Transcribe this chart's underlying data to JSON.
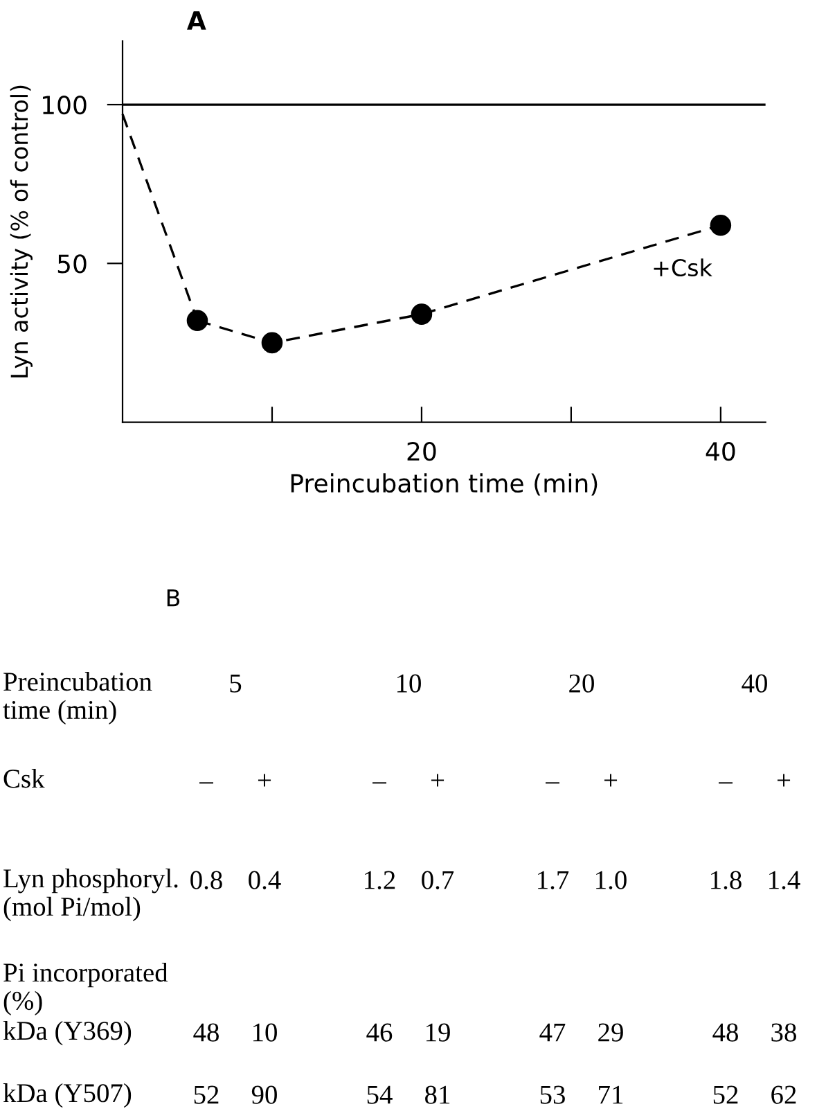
{
  "chart_data": [
    {
      "type": "line",
      "title": "A",
      "xlabel": "Preincubation time (min)",
      "ylabel": "Lyn activity (% of control)",
      "xlim": [
        0,
        43
      ],
      "ylim": [
        0,
        120
      ],
      "xticks": [
        {
          "value": 10,
          "label": null
        },
        20,
        {
          "value": 30,
          "label": null
        },
        40
      ],
      "yticks": [
        50,
        100
      ],
      "series": [
        {
          "color": "#000000",
          "x": [
            0,
            5
          ],
          "values": [
            97,
            32
          ],
          "line_style": "dashed"
        },
        {
          "color": "#000000",
          "x": [
            5,
            10,
            20,
            40
          ],
          "values": [
            32,
            25,
            34,
            62
          ],
          "marker": "circle",
          "line_style": "dashed"
        }
      ],
      "ref_lines": [
        {
          "axis": "y",
          "value": 100,
          "color": "#000000",
          "line_style": "solid"
        }
      ],
      "annotations": [
        "+Csk"
      ],
      "grid": false,
      "legend": false
    },
    {
      "type": "other",
      "title": "B",
      "xlabel": "Preincubation\ntime (min)",
      "categories": [
        "5",
        "10",
        "20",
        "40"
      ],
      "y_categories": [
        "Csk",
        "Lyn phosphoryl.\n(mol Pi/mol)",
        "Pi incorporated\n(%)",
        "kDa (Y369)",
        "kDa (Y507)"
      ],
      "cell_labels": [
        [
          "–",
          "+",
          "–",
          "+",
          "–",
          "+",
          "–",
          "+"
        ],
        [
          "0.8",
          "0.4",
          "1.2",
          "0.7",
          "1.7",
          "1.0",
          "1.8",
          "1.4"
        ],
        [
          null,
          null,
          null,
          null,
          null,
          null,
          null,
          null
        ],
        [
          "48",
          "10",
          "46",
          "19",
          "47",
          "29",
          "48",
          "38"
        ],
        [
          "52",
          "90",
          "54",
          "81",
          "53",
          "71",
          "52",
          "62"
        ]
      ]
    }
  ]
}
